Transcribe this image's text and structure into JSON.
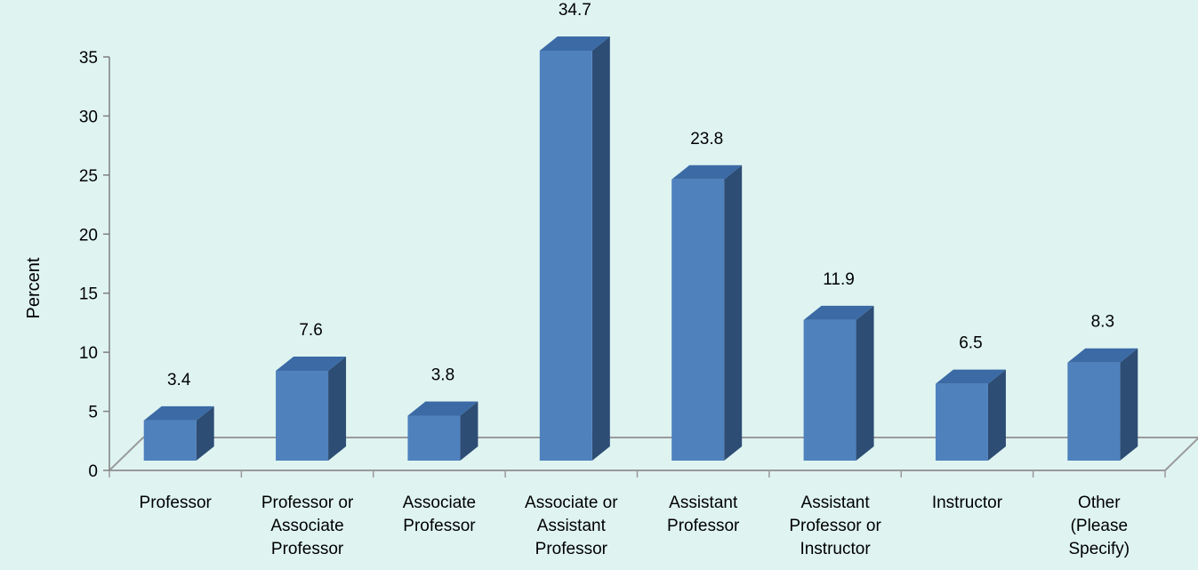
{
  "chart_data": {
    "type": "bar",
    "style": "3d-column",
    "ylabel": "Percent",
    "xlabel": "",
    "ylim": [
      0,
      35
    ],
    "yticks": [
      0,
      5,
      10,
      15,
      20,
      25,
      30,
      35
    ],
    "categories": [
      [
        "Professor"
      ],
      [
        "Professor or",
        "Associate",
        "Professor"
      ],
      [
        "Associate",
        "Professor"
      ],
      [
        "Associate or",
        "Assistant",
        "Professor"
      ],
      [
        "Assistant",
        "Professor"
      ],
      [
        "Assistant",
        "Professor or",
        "Instructor"
      ],
      [
        "Instructor"
      ],
      [
        "Other",
        "(Please",
        "Specify)"
      ]
    ],
    "values": [
      3.4,
      7.6,
      3.8,
      34.7,
      23.8,
      11.9,
      6.5,
      8.3
    ],
    "value_labels": [
      "3.4",
      "7.6",
      "3.8",
      "34.7",
      "23.8",
      "11.9",
      "6.5",
      "8.3"
    ],
    "colors": {
      "front": "#4f81bd",
      "top": "#3b6aa5",
      "side": "#2d4d75",
      "floor": "#9a9a9a",
      "axis": "#7f7f7f"
    },
    "grid": false,
    "legend": "none"
  }
}
